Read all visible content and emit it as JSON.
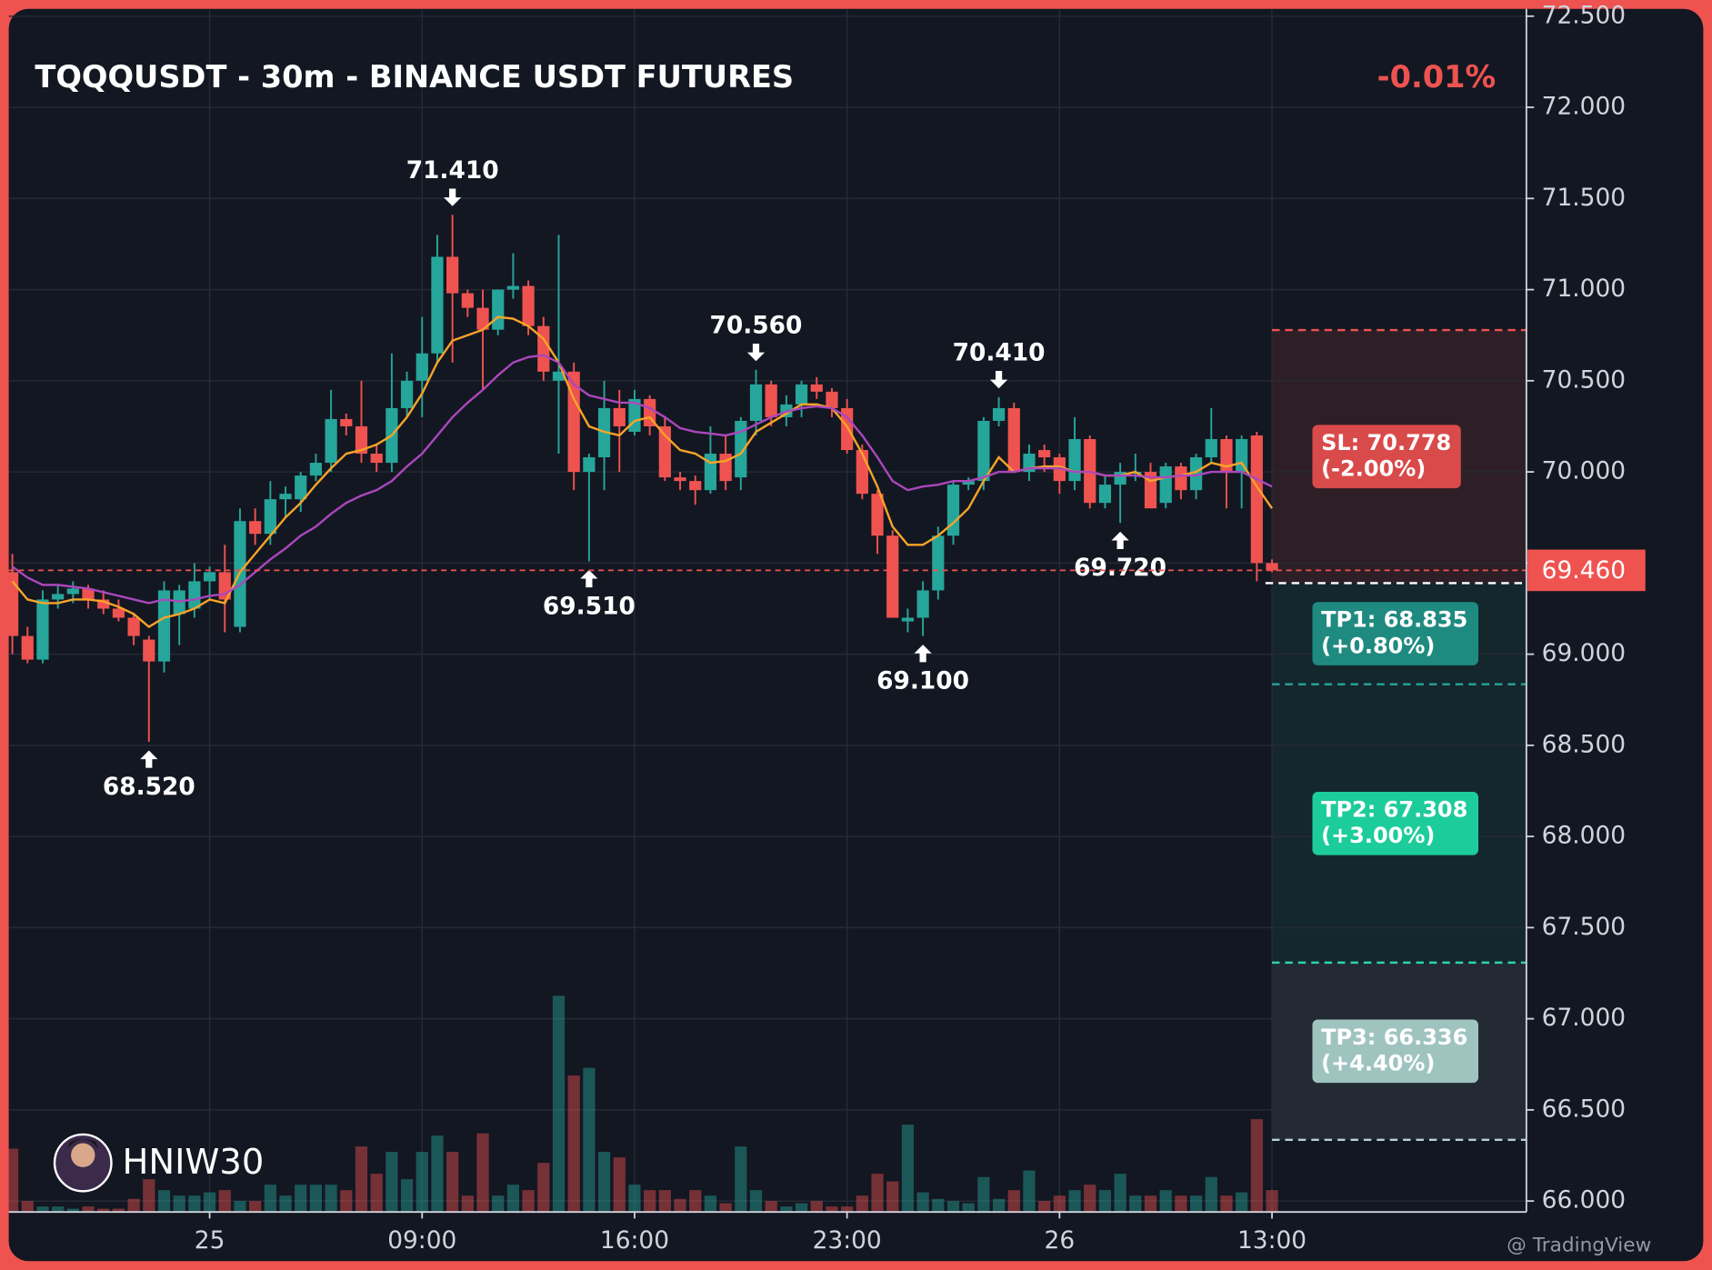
{
  "chart_data": {
    "type": "candlestick",
    "title": "TQQQUSDT - 30m - BINANCE USDT FUTURES",
    "change": "-0.01%",
    "watermark": "HNIW30",
    "footer": "@ TradingView",
    "categories": [
      null,
      null,
      null,
      null,
      null,
      null,
      null,
      null,
      null,
      null,
      null,
      null,
      null,
      "25",
      null,
      null,
      null,
      null,
      null,
      null,
      null,
      null,
      null,
      null,
      null,
      null,
      null,
      "09:00",
      null,
      null,
      null,
      null,
      null,
      null,
      null,
      null,
      null,
      null,
      null,
      null,
      null,
      "16:00",
      null,
      null,
      null,
      null,
      null,
      null,
      null,
      null,
      null,
      null,
      null,
      null,
      null,
      "23:00",
      null,
      null,
      null,
      null,
      null,
      null,
      null,
      null,
      null,
      null,
      null,
      null,
      null,
      "26",
      null,
      null,
      null,
      null,
      null,
      null,
      null,
      null,
      null,
      null,
      null,
      null,
      null,
      "13:00"
    ],
    "open": [
      69.45,
      69.1,
      68.97,
      69.3,
      69.33,
      69.36,
      69.3,
      69.25,
      69.2,
      69.08,
      68.96,
      69.22,
      69.25,
      69.4,
      69.45,
      69.15,
      69.73,
      69.66,
      69.85,
      69.85,
      69.98,
      70.05,
      70.29,
      70.25,
      70.1,
      70.05,
      70.35,
      70.5,
      70.65,
      71.18,
      70.98,
      70.9,
      70.78,
      71.0,
      71.02,
      70.8,
      70.5,
      70.55,
      70.0,
      70.08,
      70.35,
      70.22,
      70.4,
      70.25,
      69.97,
      69.95,
      69.9,
      70.1,
      69.97,
      70.28,
      70.48,
      70.3,
      70.37,
      70.48,
      70.44,
      70.35,
      70.12,
      69.88,
      69.65,
      69.18,
      69.2,
      69.35,
      69.65,
      69.93,
      69.95,
      70.28,
      70.35,
      70.0,
      70.12,
      70.08,
      69.95,
      70.18,
      69.83,
      69.93,
      70.0,
      70.0,
      69.83,
      70.03,
      69.9,
      70.08,
      70.18,
      70.0,
      70.2,
      69.5
    ],
    "high": [
      69.55,
      69.15,
      69.35,
      69.38,
      69.4,
      69.38,
      69.35,
      69.3,
      69.22,
      69.1,
      69.4,
      69.38,
      69.5,
      69.48,
      69.6,
      69.8,
      69.8,
      69.95,
      69.92,
      70.0,
      70.1,
      70.45,
      70.32,
      70.5,
      70.15,
      70.65,
      70.55,
      70.85,
      71.3,
      71.41,
      71.0,
      71.0,
      71.0,
      71.2,
      71.05,
      70.85,
      71.3,
      70.6,
      70.1,
      70.5,
      70.45,
      70.45,
      70.42,
      70.3,
      70.0,
      69.98,
      70.25,
      70.2,
      70.3,
      70.56,
      70.5,
      70.42,
      70.5,
      70.52,
      70.46,
      70.4,
      70.15,
      69.9,
      69.68,
      69.25,
      69.4,
      69.7,
      69.95,
      69.97,
      70.3,
      70.41,
      70.38,
      70.15,
      70.15,
      70.1,
      70.3,
      70.2,
      69.98,
      70.05,
      70.1,
      70.05,
      70.05,
      70.05,
      70.1,
      70.35,
      70.2,
      70.2,
      70.22,
      69.52
    ],
    "low": [
      69.0,
      68.95,
      68.95,
      69.25,
      69.28,
      69.25,
      69.22,
      69.18,
      69.05,
      68.52,
      68.9,
      69.05,
      69.2,
      69.3,
      69.12,
      69.12,
      69.6,
      69.6,
      69.75,
      69.78,
      69.95,
      70.0,
      70.2,
      70.05,
      70.0,
      70.0,
      70.3,
      70.3,
      70.6,
      70.6,
      70.85,
      70.45,
      70.75,
      70.95,
      70.75,
      70.5,
      70.1,
      69.9,
      69.51,
      69.9,
      70.0,
      70.2,
      70.2,
      69.95,
      69.9,
      69.82,
      69.88,
      69.9,
      69.9,
      70.2,
      70.25,
      70.25,
      70.3,
      70.4,
      70.3,
      70.1,
      69.85,
      69.55,
      69.2,
      69.12,
      69.1,
      69.3,
      69.6,
      69.9,
      69.9,
      70.25,
      70.0,
      69.95,
      70.0,
      69.88,
      69.9,
      69.8,
      69.8,
      69.72,
      69.95,
      69.8,
      69.8,
      69.85,
      69.85,
      70.05,
      69.8,
      69.8,
      69.4,
      69.45
    ],
    "close": [
      69.1,
      68.97,
      69.3,
      69.33,
      69.36,
      69.3,
      69.25,
      69.2,
      69.1,
      68.96,
      69.35,
      69.35,
      69.4,
      69.45,
      69.3,
      69.73,
      69.66,
      69.85,
      69.88,
      69.98,
      70.05,
      70.29,
      70.25,
      70.1,
      70.05,
      70.35,
      70.5,
      70.65,
      71.18,
      70.98,
      70.9,
      70.78,
      71.0,
      71.02,
      70.8,
      70.55,
      70.55,
      70.0,
      70.08,
      70.35,
      70.25,
      70.4,
      70.25,
      69.97,
      69.95,
      69.9,
      70.1,
      69.95,
      70.28,
      70.48,
      70.3,
      70.37,
      70.48,
      70.44,
      70.35,
      70.12,
      69.88,
      69.65,
      69.2,
      69.2,
      69.35,
      69.65,
      69.93,
      69.95,
      70.28,
      70.35,
      70.0,
      70.1,
      70.08,
      69.95,
      70.18,
      69.83,
      69.93,
      70.0,
      70.0,
      69.8,
      70.03,
      69.9,
      70.08,
      70.18,
      70.0,
      70.18,
      69.5,
      69.46
    ],
    "volume": [
      58,
      10,
      5,
      5,
      3,
      5,
      3,
      3,
      12,
      30,
      20,
      15,
      15,
      18,
      20,
      10,
      10,
      25,
      15,
      25,
      25,
      25,
      20,
      60,
      35,
      55,
      30,
      55,
      70,
      55,
      15,
      72,
      15,
      25,
      20,
      45,
      198,
      125,
      132,
      55,
      50,
      25,
      20,
      20,
      12,
      20,
      15,
      8,
      60,
      20,
      10,
      5,
      8,
      10,
      5,
      5,
      15,
      35,
      28,
      80,
      18,
      12,
      10,
      8,
      32,
      12,
      20,
      38,
      10,
      15,
      20,
      25,
      20,
      35,
      15,
      15,
      20,
      15,
      15,
      32,
      15,
      18,
      85,
      20
    ],
    "series": [
      {
        "color": "#f7a428",
        "values": [
          69.4,
          69.3,
          69.28,
          69.28,
          69.3,
          69.3,
          69.29,
          69.26,
          69.22,
          69.15,
          69.2,
          69.22,
          69.25,
          69.3,
          69.28,
          69.45,
          69.55,
          69.65,
          69.75,
          69.83,
          69.93,
          70.02,
          70.1,
          70.12,
          70.15,
          70.2,
          70.3,
          70.43,
          70.6,
          70.72,
          70.75,
          70.78,
          70.85,
          70.84,
          70.8,
          70.73,
          70.6,
          70.4,
          70.25,
          70.22,
          70.2,
          70.28,
          70.3,
          70.2,
          70.12,
          70.1,
          70.05,
          70.06,
          70.1,
          70.22,
          70.27,
          70.32,
          70.37,
          70.37,
          70.35,
          70.25,
          70.1,
          69.92,
          69.7,
          69.6,
          69.6,
          69.65,
          69.72,
          69.8,
          69.95,
          70.08,
          70.0,
          70.02,
          70.03,
          70.03,
          70.0,
          70.0,
          69.98,
          69.98,
          70.0,
          69.95,
          69.97,
          69.98,
          70.0,
          70.05,
          70.03,
          70.05,
          69.92,
          69.8
        ]
      },
      {
        "color": "#ab47bc",
        "values": [
          69.48,
          69.42,
          69.38,
          69.38,
          69.37,
          69.36,
          69.34,
          69.32,
          69.3,
          69.28,
          69.3,
          69.29,
          69.3,
          69.32,
          69.33,
          69.38,
          69.45,
          69.52,
          69.58,
          69.65,
          69.7,
          69.77,
          69.83,
          69.87,
          69.9,
          69.95,
          70.03,
          70.1,
          70.2,
          70.3,
          70.38,
          70.45,
          70.53,
          70.6,
          70.63,
          70.64,
          70.6,
          70.48,
          70.42,
          70.4,
          70.38,
          70.38,
          70.35,
          70.3,
          70.24,
          70.22,
          70.21,
          70.2,
          70.22,
          70.26,
          70.3,
          70.33,
          70.35,
          70.36,
          70.35,
          70.3,
          70.2,
          70.08,
          69.95,
          69.9,
          69.92,
          69.93,
          69.95,
          69.95,
          69.97,
          70.0,
          70.0,
          70.02,
          70.02,
          70.02,
          70.0,
          70.0,
          69.98,
          69.98,
          69.98,
          69.97,
          69.97,
          69.98,
          69.98,
          70.0,
          70.0,
          70.0,
          69.96,
          69.92
        ]
      }
    ],
    "up_color": "#26a69a",
    "down_color": "#ef5350",
    "peak_labels": [
      {
        "value": 71.41,
        "label": "71.410"
      },
      {
        "value": 70.56,
        "label": "70.560"
      },
      {
        "value": 70.41,
        "label": "70.410"
      }
    ],
    "trough_labels": [
      {
        "value": 68.52,
        "label": "68.520"
      },
      {
        "value": 69.51,
        "label": "69.510"
      },
      {
        "value": 69.1,
        "label": "69.100"
      },
      {
        "value": 69.72,
        "label": "69.720"
      }
    ],
    "last_price": {
      "value": 69.46,
      "label": "69.460"
    },
    "entry": 69.39,
    "levels": [
      {
        "label": "SL: 70.778",
        "value": 70.778,
        "change": "(-2.00%)",
        "color": "#d94a4a",
        "zone": "#2e1f27",
        "line": "#ef5350"
      },
      {
        "label": "TP1: 68.835",
        "value": 68.835,
        "change": "(+0.80%)",
        "color": "#1f8a80",
        "zone": "#13272c",
        "line": "#26a69a"
      },
      {
        "label": "TP2: 67.308",
        "value": 67.308,
        "change": "(+3.00%)",
        "color": "#1dcc9b",
        "zone": "#15272e",
        "line": "#2fd3ad"
      },
      {
        "label": "TP3: 66.336",
        "value": 66.336,
        "change": "(+4.40%)",
        "color": "#9fc4c0",
        "zone": "#232a34",
        "line": "#b8d0d6"
      }
    ],
    "ylim": [
      65.94,
      72.54
    ],
    "yticks": [
      {
        "value": 66,
        "label": "66.000"
      },
      {
        "value": 66.5,
        "label": "66.500"
      },
      {
        "value": 67,
        "label": "67.000"
      },
      {
        "value": 67.5,
        "label": "67.500"
      },
      {
        "value": 68,
        "label": "68.000"
      },
      {
        "value": 68.5,
        "label": "68.500"
      },
      {
        "value": 69,
        "label": "69.000"
      },
      {
        "value": 69.5,
        "label": "69.500"
      },
      {
        "value": 70,
        "label": "70.000"
      },
      {
        "value": 70.5,
        "label": "70.500"
      },
      {
        "value": 71,
        "label": "71.000"
      },
      {
        "value": 71.5,
        "label": "71.500"
      },
      {
        "value": 72,
        "label": "72.000"
      },
      {
        "value": 72.5,
        "label": "72.500"
      }
    ],
    "grid": true
  }
}
